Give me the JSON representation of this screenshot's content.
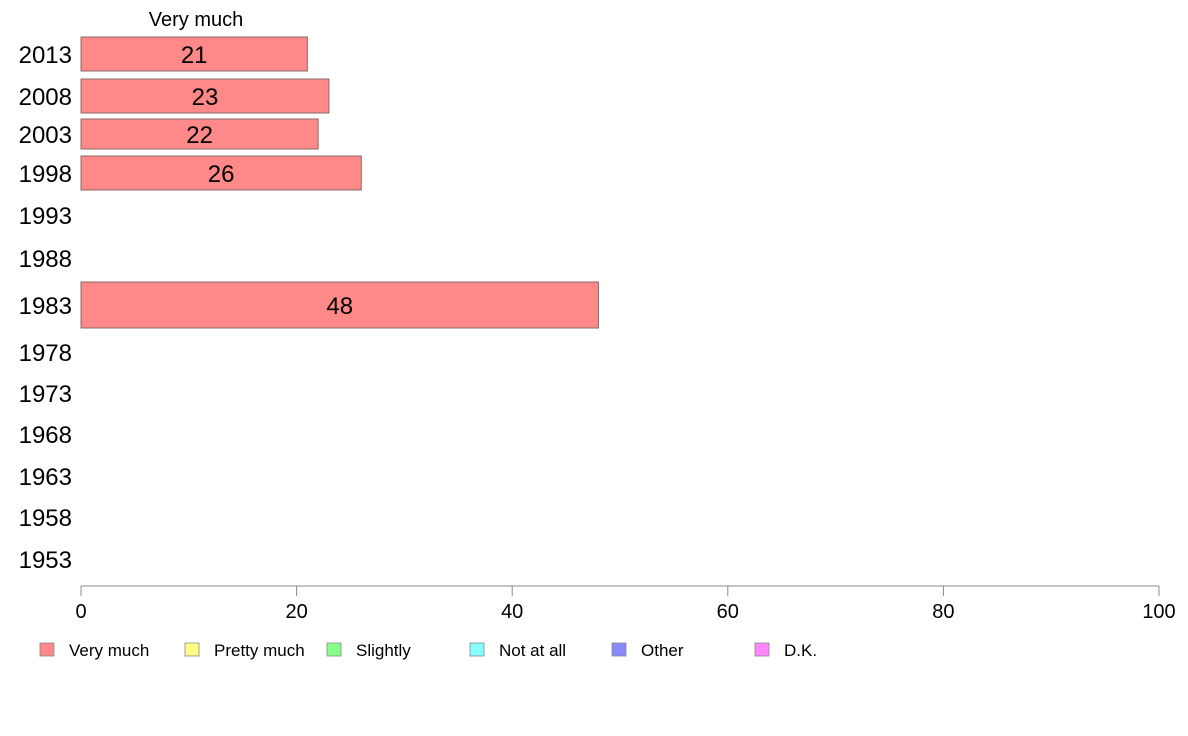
{
  "chart_data": {
    "type": "bar",
    "orientation": "horizontal",
    "stacked": true,
    "column_header": "Very much",
    "categories": [
      "2013",
      "2008",
      "2003",
      "1998",
      "1993",
      "1988",
      "1983",
      "1978",
      "1973",
      "1968",
      "1963",
      "1958",
      "1953"
    ],
    "series": [
      {
        "name": "Very much",
        "color": "#ff8888",
        "values": [
          21,
          23,
          22,
          26,
          null,
          null,
          48,
          null,
          null,
          null,
          null,
          null,
          null
        ],
        "labels": [
          "21",
          "23",
          "22",
          "26",
          "",
          "",
          "48",
          "",
          "",
          "",
          "",
          "",
          ""
        ]
      }
    ],
    "xlim": [
      0,
      100
    ],
    "xticks": [
      0,
      20,
      40,
      60,
      80,
      100
    ],
    "xtick_labels": [
      "0",
      "20",
      "40",
      "60",
      "80",
      "100"
    ],
    "grid": false,
    "legend_position": "bottom",
    "legend": [
      {
        "label": "Very much",
        "color": "#ff8888"
      },
      {
        "label": "Pretty much",
        "color": "#ffff88"
      },
      {
        "label": "Slightly",
        "color": "#88ff88"
      },
      {
        "label": "Not at all",
        "color": "#88ffff"
      },
      {
        "label": "Other",
        "color": "#8888ff"
      },
      {
        "label": "D.K.",
        "color": "#ff88ff"
      }
    ]
  }
}
